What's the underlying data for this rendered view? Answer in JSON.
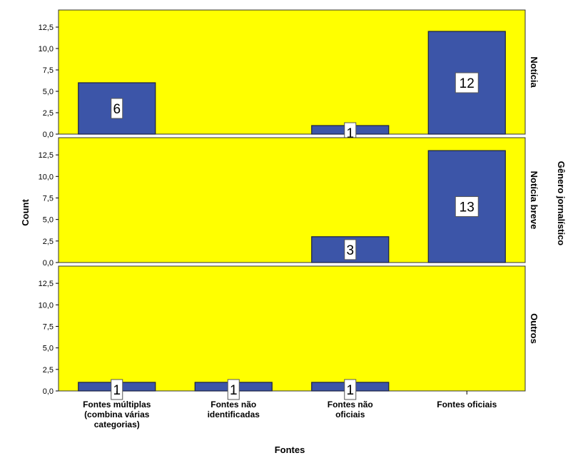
{
  "chart_data": {
    "type": "bar",
    "xlabel": "Fontes",
    "ylabel": "Count",
    "facet_label": "Gênero jornalístico",
    "categories": [
      [
        "Fontes múltiplas",
        "(combina várias",
        "categorias)"
      ],
      [
        "Fontes não",
        "identificadas"
      ],
      [
        "Fontes não",
        "oficiais"
      ],
      [
        "Fontes oficiais"
      ]
    ],
    "yticks": [
      "0,0",
      "2,5",
      "5,0",
      "7,5",
      "10,0",
      "12,5"
    ],
    "ylim": [
      0,
      14.5
    ],
    "colors": {
      "panel": "#ffff00",
      "bar": "#3c55a8",
      "bar_border": "#1a2040"
    },
    "panels": [
      {
        "name": "Notícia",
        "values": [
          6,
          0,
          1,
          12
        ],
        "labels": [
          "6",
          "",
          "1",
          "12"
        ]
      },
      {
        "name": "Notícia breve",
        "values": [
          0,
          0,
          3,
          13
        ],
        "labels": [
          "",
          "",
          "3",
          "13"
        ]
      },
      {
        "name": "Outros",
        "values": [
          1,
          1,
          1,
          0
        ],
        "labels": [
          "1",
          "1",
          "1",
          ""
        ]
      }
    ]
  }
}
